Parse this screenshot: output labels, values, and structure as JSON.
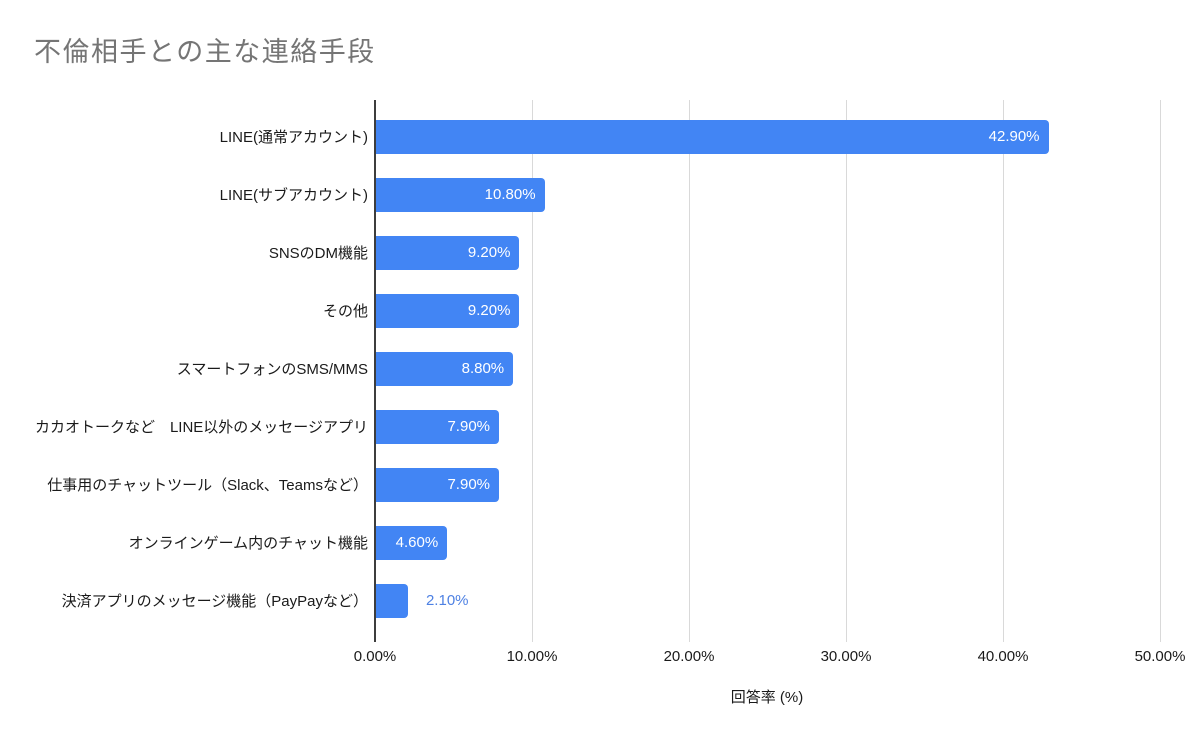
{
  "chart_data": {
    "type": "bar",
    "orientation": "horizontal",
    "title": "不倫相手との主な連絡手段",
    "categories": [
      "LINE(通常アカウント)",
      "LINE(サブアカウント)",
      "SNSのDM機能",
      "その他",
      "スマートフォンのSMS/MMS",
      "カカオトークなど　LINE以外のメッセージアプリ",
      "仕事用のチャットツール（Slack、Teamsなど）",
      "オンラインゲーム内のチャット機能",
      "決済アプリのメッセージ機能（PayPayなど）"
    ],
    "values": [
      42.9,
      10.8,
      9.2,
      9.2,
      8.8,
      7.9,
      7.9,
      4.6,
      2.1
    ],
    "value_labels": [
      "42.90%",
      "10.80%",
      "9.20%",
      "9.20%",
      "8.80%",
      "7.90%",
      "7.90%",
      "4.60%",
      "2.10%"
    ],
    "xlabel": "回答率 (%)",
    "xlim": [
      0,
      50
    ],
    "x_ticks": [
      0,
      10,
      20,
      30,
      40,
      50
    ],
    "x_tick_labels": [
      "0.00%",
      "10.00%",
      "20.00%",
      "30.00%",
      "40.00%",
      "50.00%"
    ],
    "grid": true,
    "legend": "none",
    "colors": {
      "bar": "#4285f4",
      "label_inside": "#ffffff",
      "label_outside": "#4e81e3",
      "title": "#757575",
      "axis_text": "#1a1a1a",
      "gridline": "#d9d9d9",
      "axis_line": "#3d3d3d",
      "background": "#ffffff"
    }
  }
}
